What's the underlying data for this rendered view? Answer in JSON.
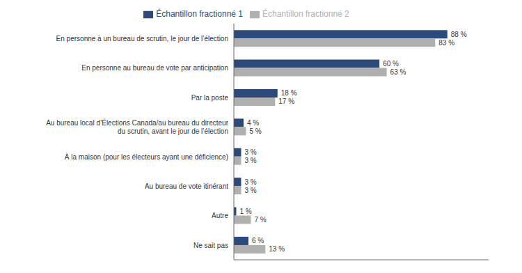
{
  "chart_data": {
    "type": "bar",
    "orientation": "horizontal",
    "categories": [
      "En personne à un bureau de scrutin, le jour de l’élection",
      "En personne au bureau de vote par anticipation",
      "Par la poste",
      "Au bureau local d’Élections Canada/au bureau du directeur\ndu scrutin, avant le jour de l’élection",
      "À la maison (pour les électeurs ayant une déficience)",
      "Au bureau de vote itinérant",
      "Autre",
      "Ne sait pas"
    ],
    "series": [
      {
        "name": "Échantillon fractionné 1",
        "color": "#2E4A7A",
        "values": [
          88,
          60,
          18,
          4,
          3,
          3,
          1,
          6
        ],
        "value_labels": [
          "88 %",
          "60 %",
          "18 %",
          "4 %",
          "3 %",
          "3 %",
          "1 %",
          "6 %"
        ]
      },
      {
        "name": "Échantillon fractionné 2",
        "color": "#B0B0B0",
        "values": [
          83,
          63,
          17,
          5,
          3,
          3,
          7,
          13
        ],
        "value_labels": [
          "83 %",
          "63 %",
          "17 %",
          "5 %",
          "3 %",
          "3 %",
          "7 %",
          "13 %"
        ]
      }
    ],
    "xlim": [
      0,
      105
    ],
    "data_labels": true,
    "tick_labels": "y",
    "grid": false,
    "legend": "top"
  }
}
